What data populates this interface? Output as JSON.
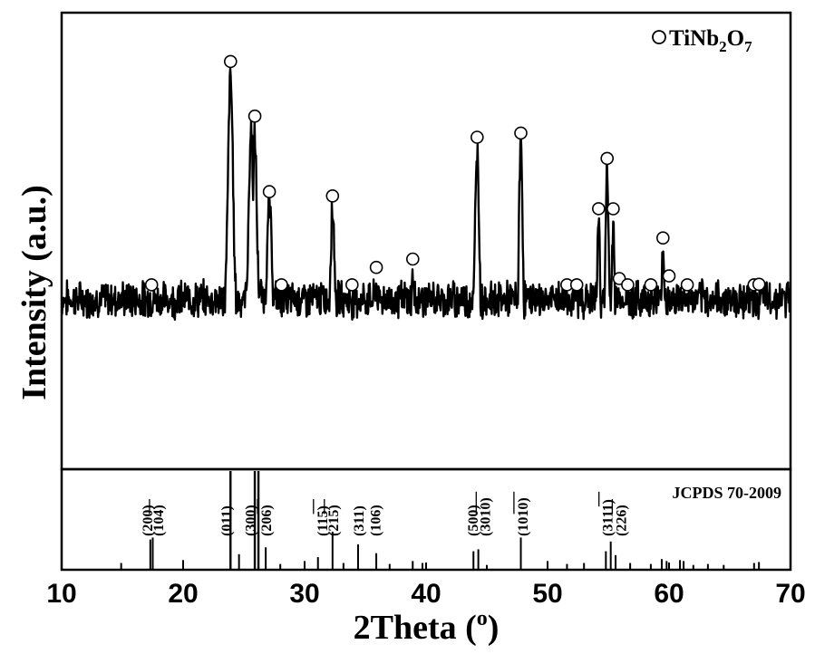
{
  "chart_data": [
    {
      "panel": "pattern",
      "type": "line",
      "xlabel": "2Theta (",
      "xlabel_sup": "o",
      "xlabel_close": ")",
      "ylabel": "Intensity (a.u.)",
      "xlim": [
        10,
        70
      ],
      "ylim": [
        0,
        100
      ],
      "x_ticks": [
        10,
        20,
        30,
        40,
        50,
        60,
        70
      ],
      "legend": {
        "marker": "open-circle",
        "text": "TiNb",
        "sub1": "2",
        "mid": "O",
        "sub2": "7",
        "position": "top-right"
      },
      "baseline": [
        [
          10,
          12
        ],
        [
          11,
          14
        ],
        [
          12,
          12
        ],
        [
          13,
          11
        ],
        [
          14,
          11
        ],
        [
          15,
          10
        ],
        [
          15.8,
          8
        ],
        [
          16.5,
          12
        ],
        [
          17,
          16
        ],
        [
          17.5,
          22
        ],
        [
          18,
          19
        ],
        [
          18.5,
          17
        ],
        [
          19,
          21
        ],
        [
          19.5,
          25
        ],
        [
          20,
          28
        ],
        [
          20.5,
          27
        ],
        [
          21,
          30
        ],
        [
          21.5,
          31
        ],
        [
          22,
          29
        ],
        [
          22.5,
          30
        ],
        [
          23,
          25
        ],
        [
          23.5,
          30
        ],
        [
          24.5,
          24
        ],
        [
          25,
          30
        ],
        [
          26.5,
          33
        ],
        [
          27.5,
          20
        ],
        [
          28,
          16
        ],
        [
          29,
          14
        ],
        [
          30,
          10
        ],
        [
          31,
          9
        ],
        [
          32,
          15
        ],
        [
          33,
          14
        ],
        [
          34,
          12
        ],
        [
          35,
          16
        ],
        [
          36,
          14
        ],
        [
          37,
          11
        ],
        [
          38,
          12
        ],
        [
          39,
          14
        ],
        [
          40,
          12
        ],
        [
          41,
          11
        ],
        [
          42,
          11
        ],
        [
          43,
          13
        ],
        [
          44,
          13
        ],
        [
          45,
          13
        ],
        [
          46,
          11
        ],
        [
          47,
          12
        ],
        [
          48,
          14
        ],
        [
          49,
          11
        ],
        [
          50,
          10
        ],
        [
          51,
          13
        ],
        [
          52,
          17
        ],
        [
          53,
          16
        ],
        [
          54,
          16
        ],
        [
          55,
          20
        ],
        [
          56,
          18
        ],
        [
          57,
          17
        ],
        [
          58,
          18
        ],
        [
          59,
          18
        ],
        [
          60,
          17
        ],
        [
          61,
          15
        ],
        [
          62,
          13
        ],
        [
          63,
          12
        ],
        [
          64,
          11
        ],
        [
          65,
          12
        ],
        [
          66,
          13
        ],
        [
          67,
          14
        ],
        [
          68,
          13
        ],
        [
          69,
          14
        ],
        [
          70,
          13
        ]
      ],
      "peaks": [
        {
          "x": 17.4,
          "y": 28,
          "w": 0.25
        },
        {
          "x": 23.9,
          "y": 85,
          "w": 0.2
        },
        {
          "x": 25.6,
          "y": 72,
          "w": 0.18
        },
        {
          "x": 25.9,
          "y": 70,
          "w": 0.15
        },
        {
          "x": 27.1,
          "y": 54,
          "w": 0.2
        },
        {
          "x": 32.3,
          "y": 53,
          "w": 0.2
        },
        {
          "x": 35.9,
          "y": 36,
          "w": 0.15
        },
        {
          "x": 38.9,
          "y": 38,
          "w": 0.13
        },
        {
          "x": 44.2,
          "y": 67,
          "w": 0.19
        },
        {
          "x": 47.8,
          "y": 68,
          "w": 0.17
        },
        {
          "x": 51.6,
          "y": 22,
          "w": 0.18
        },
        {
          "x": 54.2,
          "y": 50,
          "w": 0.14
        },
        {
          "x": 54.9,
          "y": 62,
          "w": 0.13
        },
        {
          "x": 55.4,
          "y": 50,
          "w": 0.12
        },
        {
          "x": 56.3,
          "y": 22,
          "w": 0.1
        },
        {
          "x": 58.5,
          "y": 22,
          "w": 0.14
        },
        {
          "x": 59.5,
          "y": 43,
          "w": 0.16
        },
        {
          "x": 61.2,
          "y": 17,
          "w": 0.1
        },
        {
          "x": 67.0,
          "y": 30,
          "w": 0.15
        },
        {
          "x": 67.4,
          "y": 32,
          "w": 0.12
        }
      ],
      "marker_x": [
        17.4,
        23.9,
        25.9,
        27.1,
        28.1,
        32.3,
        33.9,
        35.9,
        38.9,
        44.2,
        47.8,
        51.6,
        52.4,
        54.2,
        54.9,
        55.4,
        55.9,
        56.6,
        58.5,
        59.5,
        60.0,
        61.5,
        67.0,
        67.4
      ]
    },
    {
      "panel": "reference",
      "type": "bar",
      "title": "JCPDS 70-2009",
      "xlim": [
        10,
        70
      ],
      "ylim": [
        0,
        100
      ],
      "sticks": [
        {
          "x": 10.0,
          "y": 12
        },
        {
          "x": 14.9,
          "y": 6
        },
        {
          "x": 17.3,
          "y": 30
        },
        {
          "x": 17.5,
          "y": 32
        },
        {
          "x": 20.0,
          "y": 9
        },
        {
          "x": 23.9,
          "y": 100
        },
        {
          "x": 24.6,
          "y": 15
        },
        {
          "x": 25.9,
          "y": 100
        },
        {
          "x": 26.2,
          "y": 100
        },
        {
          "x": 26.8,
          "y": 22
        },
        {
          "x": 28.0,
          "y": 5
        },
        {
          "x": 30.0,
          "y": 8
        },
        {
          "x": 31.1,
          "y": 12
        },
        {
          "x": 32.3,
          "y": 38
        },
        {
          "x": 33.2,
          "y": 6
        },
        {
          "x": 34.4,
          "y": 25
        },
        {
          "x": 35.9,
          "y": 16
        },
        {
          "x": 37.0,
          "y": 5
        },
        {
          "x": 38.9,
          "y": 8
        },
        {
          "x": 39.7,
          "y": 6
        },
        {
          "x": 43.9,
          "y": 18
        },
        {
          "x": 44.3,
          "y": 20
        },
        {
          "x": 45.0,
          "y": 4
        },
        {
          "x": 47.8,
          "y": 32
        },
        {
          "x": 50.0,
          "y": 8
        },
        {
          "x": 51.6,
          "y": 5
        },
        {
          "x": 53.0,
          "y": 6
        },
        {
          "x": 54.8,
          "y": 18
        },
        {
          "x": 55.2,
          "y": 28
        },
        {
          "x": 55.6,
          "y": 14
        },
        {
          "x": 56.8,
          "y": 6
        },
        {
          "x": 58.5,
          "y": 5
        },
        {
          "x": 59.4,
          "y": 10
        },
        {
          "x": 59.8,
          "y": 8
        },
        {
          "x": 60.9,
          "y": 9
        },
        {
          "x": 61.2,
          "y": 8
        },
        {
          "x": 62.0,
          "y": 4
        },
        {
          "x": 63.2,
          "y": 5
        },
        {
          "x": 64.5,
          "y": 4
        },
        {
          "x": 67.0,
          "y": 6
        },
        {
          "x": 67.4,
          "y": 7
        }
      ],
      "labels": [
        {
          "x": 17.0,
          "text": "(200)"
        },
        {
          "x": 17.9,
          "text": "(104)",
          "bar": [
            3,
            5
          ]
        },
        {
          "x": 23.5,
          "text": "(011)"
        },
        {
          "x": 25.5,
          "text": "(300)"
        },
        {
          "x": 26.8,
          "text": "(206)",
          "bar": [
            3,
            5
          ]
        },
        {
          "x": 31.4,
          "text": "(115)",
          "bar": [
            3,
            5
          ]
        },
        {
          "x": 32.3,
          "text": "(215)",
          "bar": [
            3,
            5
          ]
        },
        {
          "x": 34.4,
          "text": "(311)"
        },
        {
          "x": 35.8,
          "text": "(106)"
        },
        {
          "x": 43.8,
          "text": "(500)"
        },
        {
          "x": 44.8,
          "text": "(3010)",
          "bar": [
            3,
            6
          ]
        },
        {
          "x": 47.9,
          "text": "(1010)",
          "bar": [
            3,
            6
          ]
        },
        {
          "x": 54.9,
          "text": "(3111)",
          "bar": [
            4,
            6
          ]
        },
        {
          "x": 56.0,
          "text": "(226)",
          "bar": [
            3,
            5
          ]
        }
      ]
    }
  ]
}
